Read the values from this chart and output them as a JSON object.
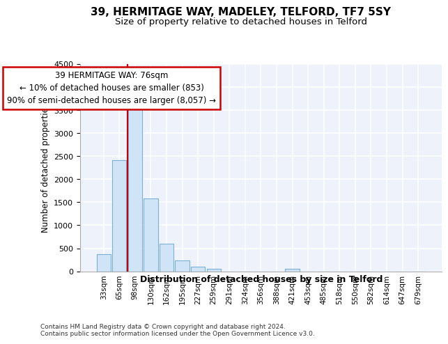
{
  "title1": "39, HERMITAGE WAY, MADELEY, TELFORD, TF7 5SY",
  "title2": "Size of property relative to detached houses in Telford",
  "xlabel": "Distribution of detached houses by size in Telford",
  "ylabel": "Number of detached properties",
  "categories": [
    "33sqm",
    "65sqm",
    "98sqm",
    "130sqm",
    "162sqm",
    "195sqm",
    "227sqm",
    "259sqm",
    "291sqm",
    "324sqm",
    "356sqm",
    "388sqm",
    "421sqm",
    "453sqm",
    "485sqm",
    "518sqm",
    "550sqm",
    "582sqm",
    "614sqm",
    "647sqm",
    "679sqm"
  ],
  "values": [
    375,
    2420,
    3610,
    1580,
    600,
    230,
    100,
    60,
    0,
    0,
    0,
    0,
    55,
    0,
    0,
    0,
    0,
    0,
    0,
    0,
    0
  ],
  "bar_color": "#d0e4f7",
  "bar_edge_color": "#7bafd4",
  "ylim": [
    0,
    4500
  ],
  "yticks": [
    0,
    500,
    1000,
    1500,
    2000,
    2500,
    3000,
    3500,
    4000,
    4500
  ],
  "red_line_x": 1.52,
  "annotation_text": "39 HERMITAGE WAY: 76sqm\n← 10% of detached houses are smaller (853)\n90% of semi-detached houses are larger (8,057) →",
  "annotation_box_color": "#ffffff",
  "annotation_box_edge": "#cc0000",
  "footer": "Contains HM Land Registry data © Crown copyright and database right 2024.\nContains public sector information licensed under the Open Government Licence v3.0.",
  "background_color": "#edf2fb",
  "grid_color": "#ffffff",
  "title1_fontsize": 11,
  "title2_fontsize": 9.5,
  "xlabel_fontsize": 9,
  "ylabel_fontsize": 8.5,
  "tick_fontsize": 8,
  "footer_fontsize": 6.5
}
